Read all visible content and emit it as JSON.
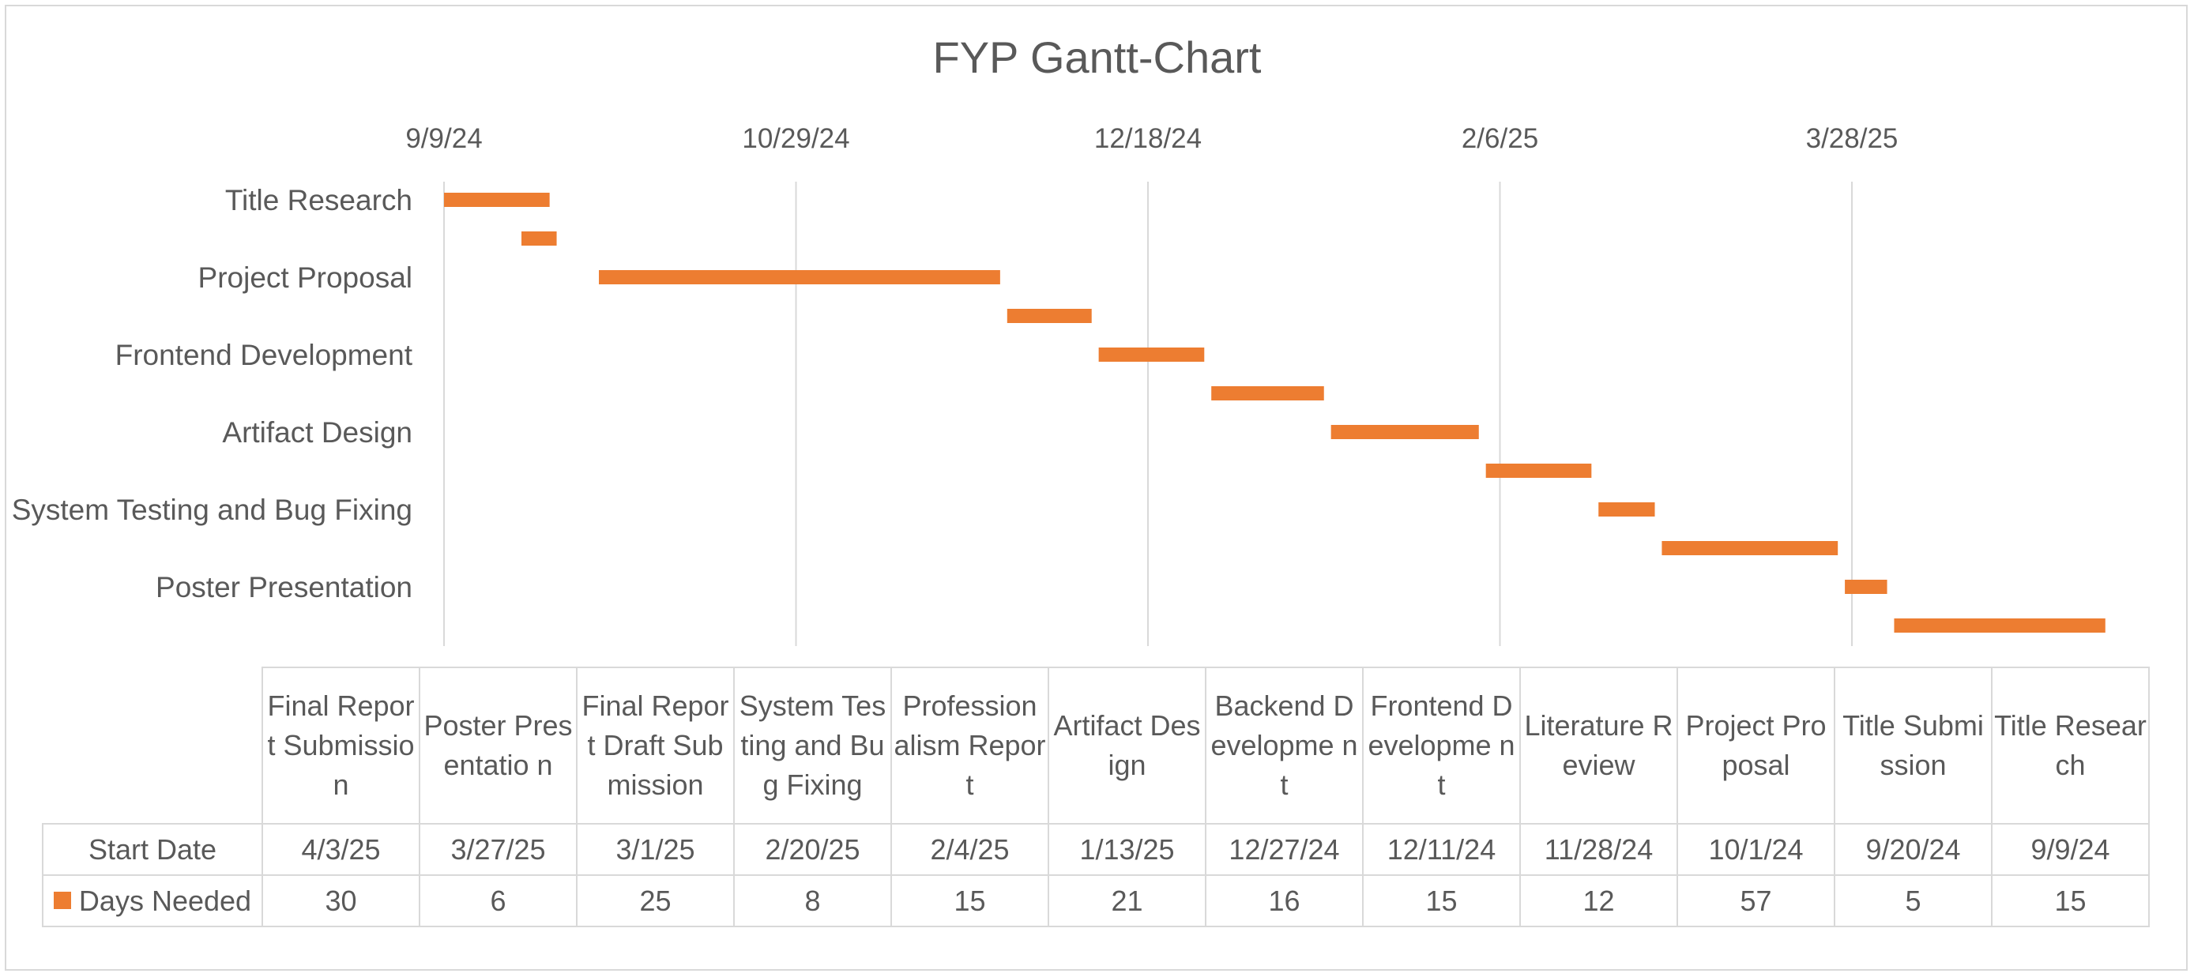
{
  "chart_data": {
    "type": "bar",
    "orientation": "horizontal-gantt",
    "title": "FYP Gantt-Chart",
    "x_axis": {
      "type": "date",
      "position": "top",
      "tick_labels": [
        "9/9/24",
        "10/29/24",
        "12/18/24",
        "2/6/25",
        "3/28/25"
      ],
      "grid": true
    },
    "y_axis_labels": [
      "Title Research",
      "Project Proposal",
      "Frontend Development",
      "Artifact Design",
      "System Testing and Bug Fixing",
      "Poster Presentation"
    ],
    "series_color": "#ED7D31",
    "tasks": [
      {
        "name": "Title Research",
        "start": "9/9/24",
        "days": 15
      },
      {
        "name": "Title Submission",
        "start": "9/20/24",
        "days": 5
      },
      {
        "name": "Project Proposal",
        "start": "10/1/24",
        "days": 57
      },
      {
        "name": "Literature Review",
        "start": "11/28/24",
        "days": 12
      },
      {
        "name": "Frontend Developme nt",
        "start": "12/11/24",
        "days": 15
      },
      {
        "name": "Backend Developme nt",
        "start": "12/27/24",
        "days": 16
      },
      {
        "name": "Artifact Design",
        "start": "1/13/25",
        "days": 21
      },
      {
        "name": "Profession alism Report",
        "start": "2/4/25",
        "days": 15
      },
      {
        "name": "System Testing and Bug Fixing",
        "start": "2/20/25",
        "days": 8
      },
      {
        "name": "Final Report Draft Submission",
        "start": "3/1/25",
        "days": 25
      },
      {
        "name": "Poster Presentatio n",
        "start": "3/27/25",
        "days": 6
      },
      {
        "name": "Final Report Submission",
        "start": "4/3/25",
        "days": 30
      }
    ]
  },
  "data_table": {
    "columns": [
      "Final Report Submission",
      "Poster Presentatio n",
      "Final Report Draft Submission",
      "System Testing and Bug Fixing",
      "Profession alism Report",
      "Artifact Design",
      "Backend Developme nt",
      "Frontend Developme nt",
      "Literature Review",
      "Project Proposal",
      "Title Submission",
      "Title Research"
    ],
    "start_label": "Start Date",
    "start_dates": [
      "4/3/25",
      "3/27/25",
      "3/1/25",
      "2/20/25",
      "2/4/25",
      "1/13/25",
      "12/27/24",
      "12/11/24",
      "11/28/24",
      "10/1/24",
      "9/20/24",
      "9/9/24"
    ],
    "days_label": "Days Needed",
    "days": [
      "30",
      "6",
      "25",
      "8",
      "15",
      "21",
      "16",
      "15",
      "12",
      "57",
      "5",
      "15"
    ]
  }
}
